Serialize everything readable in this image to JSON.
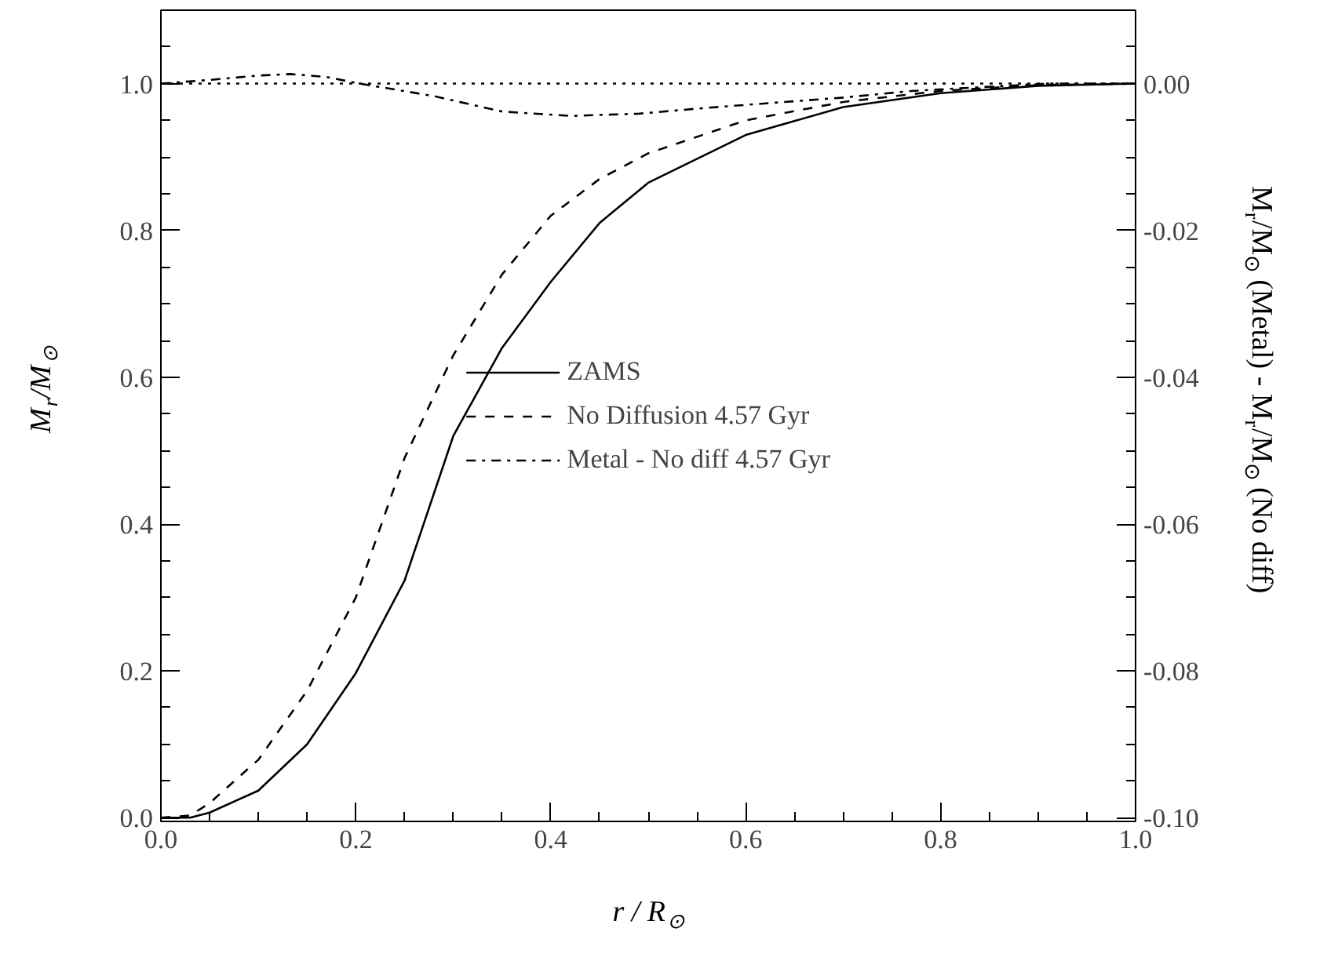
{
  "chart_data": {
    "type": "line",
    "xlabel": "r / R$_{⊙}$",
    "ylabel": "M$_{r}$/M$_{⊙}$",
    "y2label": "M$_{r}$/M$_{⊙}$ (Metal) - M$_{r}$/M$_{⊙}$ (No diff)",
    "xlim": [
      0,
      1
    ],
    "ylim": [
      -0.005,
      1.1
    ],
    "y2lim": [
      -0.1005,
      0.01
    ],
    "xticks": [
      {
        "value": 0,
        "label": "0.0"
      },
      {
        "value": 0.05,
        "label": null
      },
      {
        "value": 0.1,
        "label": null
      },
      {
        "value": 0.15,
        "label": null
      },
      {
        "value": 0.2,
        "label": "0.2"
      },
      {
        "value": 0.25,
        "label": null
      },
      {
        "value": 0.3,
        "label": null
      },
      {
        "value": 0.35,
        "label": null
      },
      {
        "value": 0.4,
        "label": "0.4"
      },
      {
        "value": 0.45,
        "label": null
      },
      {
        "value": 0.5,
        "label": null
      },
      {
        "value": 0.55,
        "label": null
      },
      {
        "value": 0.6,
        "label": "0.6"
      },
      {
        "value": 0.65,
        "label": null
      },
      {
        "value": 0.7,
        "label": null
      },
      {
        "value": 0.75,
        "label": null
      },
      {
        "value": 0.8,
        "label": "0.8"
      },
      {
        "value": 0.85,
        "label": null
      },
      {
        "value": 0.9,
        "label": null
      },
      {
        "value": 0.95,
        "label": null
      },
      {
        "value": 1,
        "label": "1.0"
      }
    ],
    "yticks": [
      {
        "value": 0,
        "label": "0.0"
      },
      {
        "value": 0.05,
        "label": null
      },
      {
        "value": 0.1,
        "label": null
      },
      {
        "value": 0.15,
        "label": null
      },
      {
        "value": 0.2,
        "label": "0.2"
      },
      {
        "value": 0.25,
        "label": null
      },
      {
        "value": 0.3,
        "label": null
      },
      {
        "value": 0.35,
        "label": null
      },
      {
        "value": 0.4,
        "label": "0.4"
      },
      {
        "value": 0.45,
        "label": null
      },
      {
        "value": 0.5,
        "label": null
      },
      {
        "value": 0.55,
        "label": null
      },
      {
        "value": 0.6,
        "label": "0.6"
      },
      {
        "value": 0.65,
        "label": null
      },
      {
        "value": 0.7,
        "label": null
      },
      {
        "value": 0.75,
        "label": null
      },
      {
        "value": 0.8,
        "label": "0.8"
      },
      {
        "value": 0.85,
        "label": null
      },
      {
        "value": 0.9,
        "label": null
      },
      {
        "value": 0.95,
        "label": null
      },
      {
        "value": 1,
        "label": "1.0"
      },
      {
        "value": 1.05,
        "label": null
      }
    ],
    "y2ticks": [
      {
        "value": -0.1,
        "label": "-0.10"
      },
      {
        "value": -0.095,
        "label": null
      },
      {
        "value": -0.09,
        "label": null
      },
      {
        "value": -0.085,
        "label": null
      },
      {
        "value": -0.08,
        "label": "-0.08"
      },
      {
        "value": -0.075,
        "label": null
      },
      {
        "value": -0.07,
        "label": null
      },
      {
        "value": -0.065,
        "label": null
      },
      {
        "value": -0.06,
        "label": "-0.06"
      },
      {
        "value": -0.055,
        "label": null
      },
      {
        "value": -0.05,
        "label": null
      },
      {
        "value": -0.045,
        "label": null
      },
      {
        "value": -0.04,
        "label": "-0.04"
      },
      {
        "value": -0.035,
        "label": null
      },
      {
        "value": -0.03,
        "label": null
      },
      {
        "value": -0.025,
        "label": null
      },
      {
        "value": -0.02,
        "label": "-0.02"
      },
      {
        "value": -0.015,
        "label": null
      },
      {
        "value": -0.01,
        "label": null
      },
      {
        "value": -0.005,
        "label": null
      },
      {
        "value": 0,
        "label": "0.00"
      },
      {
        "value": 0.005,
        "label": null
      }
    ],
    "grid": false,
    "legend": "center",
    "ref_lines": [
      {
        "axis": "y2",
        "value": 0,
        "line_style": "dotted",
        "color": "#000000"
      }
    ],
    "series": [
      {
        "name": "ZAMS",
        "color": "#000000",
        "line_style": "solid",
        "x": [
          0,
          0.03,
          0.05,
          0.1,
          0.15,
          0.2,
          0.25,
          0.3,
          0.35,
          0.4,
          0.45,
          0.5,
          0.6,
          0.7,
          0.8,
          0.9,
          1.0
        ],
        "values": [
          0,
          0,
          0.007,
          0.037,
          0.1,
          0.197,
          0.323,
          0.52,
          0.64,
          0.73,
          0.81,
          0.865,
          0.93,
          0.968,
          0.987,
          0.997,
          1.0
        ]
      },
      {
        "name": "No Diffusion 4.57 Gyr",
        "color": "#000000",
        "line_style": "dashed",
        "x": [
          0,
          0.03,
          0.05,
          0.1,
          0.15,
          0.2,
          0.25,
          0.3,
          0.35,
          0.4,
          0.45,
          0.5,
          0.6,
          0.7,
          0.8,
          0.9,
          1.0
        ],
        "values": [
          0,
          0.003,
          0.02,
          0.079,
          0.173,
          0.3,
          0.49,
          0.63,
          0.74,
          0.82,
          0.87,
          0.905,
          0.95,
          0.975,
          0.99,
          0.998,
          1.0
        ]
      },
      {
        "name": "Metal - No diff 4.57 Gyr",
        "color": "#000000",
        "line_style": "dashdot",
        "axis": "y2",
        "x": [
          0,
          0.05,
          0.1,
          0.133,
          0.17,
          0.204,
          0.28,
          0.35,
          0.42,
          0.49,
          0.56,
          0.63,
          0.7,
          0.77,
          0.84,
          0.91,
          1.0
        ],
        "values": [
          0,
          0.0005,
          0.0011,
          0.0013,
          0.0009,
          0,
          -0.0017,
          -0.0038,
          -0.0044,
          -0.0041,
          -0.0033,
          -0.0026,
          -0.0019,
          -0.001,
          -0.0005,
          0,
          0
        ]
      }
    ]
  }
}
